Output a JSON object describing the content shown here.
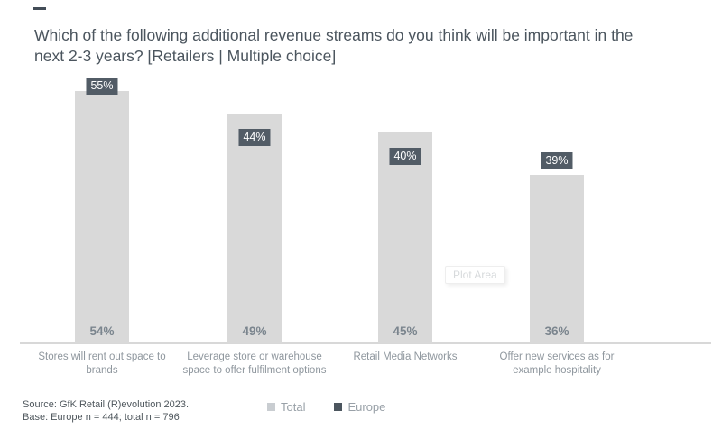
{
  "header": {
    "title": "Which of the following additional revenue streams do you think will be important in the\nnext 2-3 years? [Retailers | Multiple choice]"
  },
  "chart_data": {
    "type": "bar",
    "title": "Which of the following additional revenue streams do you think will be important in the next 2-3 years? [Retailers | Multiple choice]",
    "categories": [
      "Stores will rent out space to brands",
      "Leverage store or warehouse space to offer fulfilment options",
      "Retail Media Networks",
      "Offer new services as for example hospitality"
    ],
    "category_label_lines": [
      "Stores will rent out space to\nbrands",
      "Leverage store or warehouse\nspace to offer fulfilment options",
      "Retail Media Networks",
      "Offer new services as for\nexample hospitality"
    ],
    "series": [
      {
        "name": "Total",
        "values": [
          54,
          49,
          45,
          36
        ],
        "color": "#d9d9d9",
        "label_style": "inside-base",
        "label_color": "#7b858e"
      },
      {
        "name": "Europe",
        "values": [
          55,
          44,
          40,
          39
        ],
        "color": "#525c66",
        "label_style": "floating-badge",
        "label_color": "#ffffff"
      }
    ],
    "value_suffix": "%",
    "ylim": [
      0,
      75
    ],
    "grid": false,
    "axis_line_color": "#d8d8d8",
    "legend_position": "bottom-center",
    "plot_area_label": "Plot Area"
  },
  "plot_area_tooltip": "Plot Area",
  "legend": {
    "items": [
      {
        "label": "Total",
        "swatch_color": "#c9cdd1"
      },
      {
        "label": "Europe",
        "swatch_color": "#4c565f"
      }
    ]
  },
  "footer": {
    "source_line1": "Source: GfK Retail (R)evolution 2023.",
    "source_line2": "Base: Europe n = 444; total n = 796"
  }
}
